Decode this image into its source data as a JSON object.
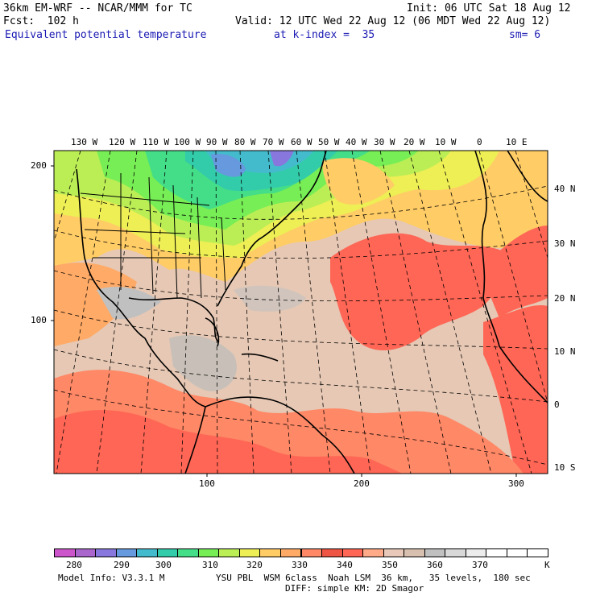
{
  "header": {
    "model": "36km EM-WRF -- NCAR/MMM for TC",
    "init": "Init: 06 UTC Sat 18 Aug 12",
    "fcst": "Fcst:  102 h",
    "valid": "Valid: 12 UTC Wed 22 Aug 12 (06 MDT Wed 22 Aug 12)",
    "field": "Equivalent potential temperature",
    "level": "at k-index =  35",
    "smoothing": "sm= 6"
  },
  "map": {
    "lon_labels": [
      "130 W",
      "120 W",
      "110 W",
      "100 W",
      "90 W",
      "80 W",
      "70 W",
      "60 W",
      "50 W",
      "40 W",
      "30 W",
      "20 W",
      "10 W",
      "0",
      "10 E"
    ],
    "lat_labels": [
      "40 N",
      "30 N",
      "20 N",
      "10 N",
      "0",
      "10 S"
    ],
    "grid_x_labels": [
      "100",
      "200",
      "300"
    ],
    "grid_y_labels": [
      "200",
      "100"
    ]
  },
  "colorbar": {
    "unit": "K",
    "labels": [
      "280",
      "290",
      "300",
      "310",
      "320",
      "330",
      "340",
      "350",
      "360",
      "370"
    ],
    "colors": [
      "#cc55cc",
      "#aa66cc",
      "#8877dd",
      "#6699dd",
      "#44bbcc",
      "#33ccaa",
      "#44dd88",
      "#77ee55",
      "#bbee55",
      "#eeee55",
      "#ffcc66",
      "#ffaa66",
      "#ff8866",
      "#ee5544",
      "#ff6655",
      "#ffaa88",
      "#e8c8b8",
      "#d8c0b0",
      "#c0c0c0",
      "#d8d8d8",
      "#ececec",
      "#ffffff",
      "#ffffff",
      "#ffffff"
    ]
  },
  "footer": {
    "model_info": "Model Info: V3.3.1 M",
    "physics": "YSU PBL  WSM 6class  Noah LSM  36 km,   35 levels,  180 sec",
    "diffusion": "DIFF: simple KM: 2D Smagor"
  }
}
